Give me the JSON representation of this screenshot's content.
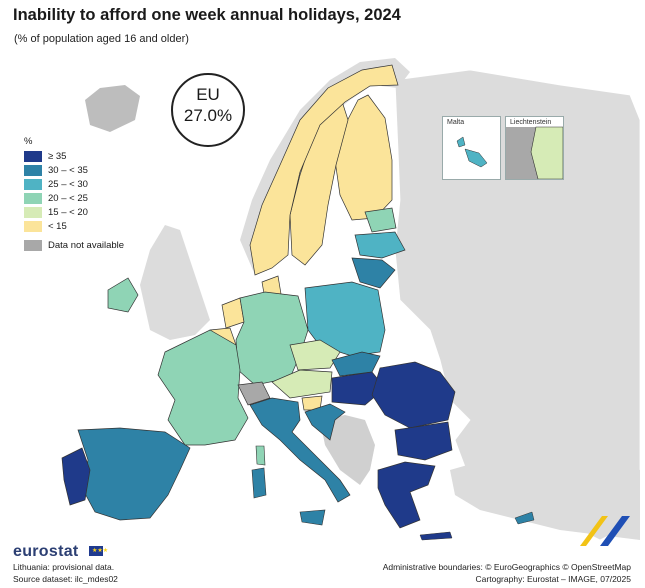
{
  "title": "Inability to afford one week annual holidays, 2024",
  "subtitle": "(% of population aged 16 and older)",
  "eu_badge": {
    "label": "EU",
    "value": "27.0%"
  },
  "legend": {
    "title": "%",
    "classes": [
      {
        "label": "≥ 35",
        "color": "#1f3a8a"
      },
      {
        "label": "30 – < 35",
        "color": "#2e82a6"
      },
      {
        "label": "25 – < 30",
        "color": "#4fb3c4"
      },
      {
        "label": "20 – < 25",
        "color": "#8fd4b5"
      },
      {
        "label": "15 – < 20",
        "color": "#d6ebb6"
      },
      {
        "label": "< 15",
        "color": "#fbe49a"
      }
    ],
    "na": {
      "label": "Data not available",
      "color": "#a8a8a8"
    }
  },
  "insets": {
    "malta": "Malta",
    "liechtenstein": "Liechtenstein"
  },
  "footer": {
    "brand": "eurostat",
    "note": "Lithuania: provisional data.",
    "source": "Source dataset: ilc_mdes02",
    "boundaries": "Administrative boundaries: © EuroGeographics © OpenStreetMap",
    "cartography": "Cartography: Eurostat – IMAGE, 07/2025"
  },
  "colors": {
    "land_non_eu": "#dcdcdc",
    "sea": "#ffffff",
    "border": "#333333"
  }
}
